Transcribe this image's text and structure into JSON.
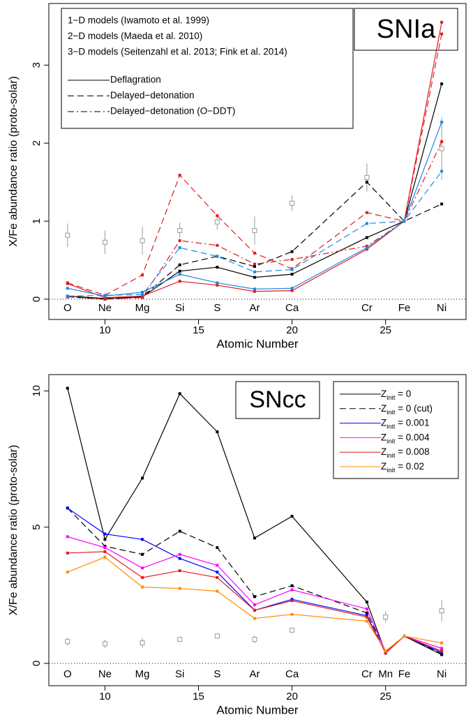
{
  "chart_data": [
    {
      "type": "line",
      "title": "SNIa",
      "x_label": "Atomic Number",
      "y_label": "X/Fe abundance ratio (proto-solar)",
      "xlim": [
        7,
        29.3
      ],
      "ylim": [
        -0.26,
        3.79
      ],
      "xticks": [
        10,
        15,
        20,
        25
      ],
      "yticks": [
        0,
        1,
        2,
        3
      ],
      "hline": 0,
      "x": [
        8,
        10,
        12,
        14,
        16,
        18,
        20,
        24,
        26,
        28
      ],
      "elements": [
        "O",
        "Ne",
        "Mg",
        "Si",
        "S",
        "Ar",
        "Ca",
        "Cr",
        "Fe",
        "Ni"
      ],
      "model_groups": [
        {
          "label": "1−D models (Iwamoto et al. 1999)",
          "color": "#000000"
        },
        {
          "label": "2−D models (Maeda et al. 2010)",
          "color": "#e41a1c"
        },
        {
          "label": "3−D models (Seitenzahl et al. 2013; Fink et al. 2014)",
          "color": "#1e88e5"
        }
      ],
      "line_styles": [
        {
          "label": "Deflagration",
          "dash": "solid"
        },
        {
          "label": "Delayed−detonation",
          "dash": "dashed"
        },
        {
          "label": "Delayed−detonation (O−DDT)",
          "dash": "dotdash"
        }
      ],
      "series": [
        {
          "color": "#000000",
          "dash": "solid",
          "values": [
            0.04,
            0.01,
            0.03,
            0.36,
            0.41,
            0.28,
            0.32,
            0.79,
            1,
            2.76
          ]
        },
        {
          "color": "#000000",
          "dash": "dashed",
          "values": [
            0.03,
            0.0,
            0.03,
            0.44,
            0.55,
            0.42,
            0.61,
            1.5,
            1,
            1.22
          ]
        },
        {
          "color": "#e41a1c",
          "dash": "solid",
          "values": [
            0.2,
            0.02,
            0.04,
            0.23,
            0.18,
            0.1,
            0.11,
            0.64,
            1,
            3.55
          ]
        },
        {
          "color": "#e41a1c",
          "dash": "dashed",
          "values": [
            0.21,
            0.05,
            0.31,
            1.59,
            1.07,
            0.59,
            0.39,
            1.11,
            1,
            3.4
          ]
        },
        {
          "color": "#e41a1c",
          "dash": "dotdash",
          "values": [
            0.03,
            0.0,
            0.02,
            0.75,
            0.69,
            0.45,
            0.51,
            0.68,
            1,
            2.02
          ]
        },
        {
          "color": "#1e88e5",
          "dash": "solid",
          "values": [
            0.14,
            0.04,
            0.09,
            0.32,
            0.21,
            0.13,
            0.14,
            0.66,
            1,
            2.27
          ]
        },
        {
          "color": "#1e88e5",
          "dash": "dashed",
          "values": [
            0.04,
            0.05,
            0.06,
            0.66,
            0.55,
            0.35,
            0.38,
            0.97,
            1,
            1.64
          ]
        }
      ],
      "observed": {
        "color": "#999999",
        "x": [
          8,
          10,
          12,
          14,
          16,
          18,
          20,
          24,
          28
        ],
        "values": [
          0.82,
          0.73,
          0.75,
          0.88,
          0.99,
          0.88,
          1.23,
          1.56,
          1.93
        ],
        "errors": [
          0.15,
          0.15,
          0.18,
          0.1,
          0.1,
          0.18,
          0.1,
          0.18,
          0.4
        ]
      }
    },
    {
      "type": "line",
      "title": "SNcc",
      "x_label": "Atomic Number",
      "y_label": "X/Fe abundance ratio (proto-solar)",
      "xlim": [
        7,
        29.3
      ],
      "ylim": [
        -0.82,
        10.6
      ],
      "xticks": [
        10,
        15,
        20,
        25
      ],
      "yticks": [
        0,
        5,
        10
      ],
      "hline": 0,
      "x": [
        8,
        10,
        12,
        14,
        16,
        18,
        20,
        24,
        25,
        26,
        28
      ],
      "elements": [
        "O",
        "Ne",
        "Mg",
        "Si",
        "S",
        "Ar",
        "Ca",
        "Cr",
        "Mn",
        "Fe",
        "Ni"
      ],
      "series": [
        {
          "name": {
            "main": "Z",
            "sub": "init",
            "rest": " = 0"
          },
          "color": "#000000",
          "dash": "solid",
          "values": [
            10.1,
            4.55,
            6.8,
            9.9,
            8.5,
            4.6,
            5.4,
            2.25,
            0.38,
            1.0,
            0.32
          ]
        },
        {
          "name": {
            "main": "Z",
            "sub": "init",
            "rest": " = 0 (cut)"
          },
          "color": "#000000",
          "dash": "dashed",
          "values": [
            5.7,
            4.3,
            4.0,
            4.85,
            4.25,
            2.45,
            2.85,
            1.85,
            0.45,
            1.0,
            0.35
          ]
        },
        {
          "name": {
            "main": "Z",
            "sub": "init",
            "rest": " = 0.001"
          },
          "color": "#0000ff",
          "dash": "solid",
          "values": [
            5.7,
            4.75,
            4.55,
            3.85,
            3.35,
            1.95,
            2.35,
            1.75,
            0.38,
            1.0,
            0.4
          ]
        },
        {
          "name": {
            "main": "Z",
            "sub": "init",
            "rest": " = 0.004"
          },
          "color": "#ff00ff",
          "dash": "solid",
          "values": [
            4.65,
            4.25,
            3.5,
            4.0,
            3.6,
            2.15,
            2.7,
            2.0,
            0.42,
            1.0,
            0.55
          ]
        },
        {
          "name": {
            "main": "Z",
            "sub": "init",
            "rest": " = 0.008"
          },
          "color": "#e41a1c",
          "dash": "solid",
          "values": [
            4.05,
            4.1,
            3.15,
            3.4,
            3.15,
            1.95,
            2.3,
            1.7,
            0.38,
            1.0,
            0.45
          ]
        },
        {
          "name": {
            "main": "Z",
            "sub": "init",
            "rest": " = 0.02"
          },
          "color": "#ff8c00",
          "dash": "solid",
          "values": [
            3.35,
            3.9,
            2.8,
            2.75,
            2.65,
            1.65,
            1.8,
            1.55,
            0.45,
            1.0,
            0.75
          ]
        }
      ],
      "observed": {
        "color": "#999999",
        "x": [
          8,
          10,
          12,
          14,
          16,
          18,
          20,
          25,
          28
        ],
        "values": [
          0.8,
          0.72,
          0.75,
          0.88,
          1.0,
          0.88,
          1.22,
          1.7,
          1.93
        ],
        "errors": [
          0.15,
          0.15,
          0.18,
          0.08,
          0.1,
          0.15,
          0.1,
          0.2,
          0.4
        ]
      }
    }
  ]
}
